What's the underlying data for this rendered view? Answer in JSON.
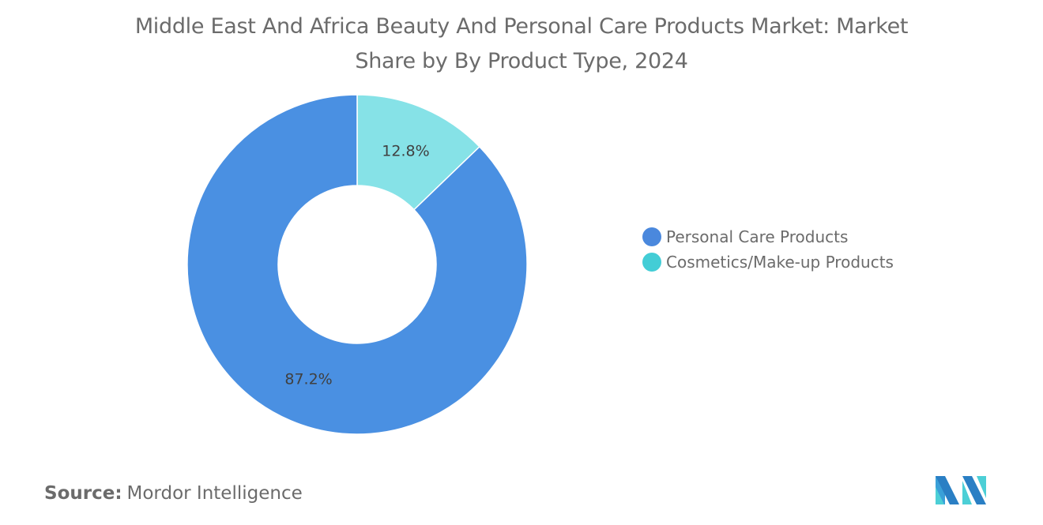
{
  "title": "Middle East And Africa Beauty And Personal Care Products Market: Market Share by By Product Type, 2024",
  "chart_data": {
    "type": "pie",
    "variant": "donut",
    "title": "Middle East And Africa Beauty And Personal Care Products Market: Market Share by By Product Type, 2024",
    "slices": [
      {
        "name": "Cosmetics/Make-up Products",
        "value": 12.8,
        "label": "12.8%",
        "color": "#86e2e7",
        "legend_color": "#43cdd6"
      },
      {
        "name": "Personal Care Products",
        "value": 87.2,
        "label": "87.2%",
        "color": "#4a90e2",
        "legend_color": "#4a88dd"
      }
    ],
    "legend": {
      "placement": "right",
      "items": [
        "Personal Care Products",
        "Cosmetics/Make-up Products"
      ]
    }
  },
  "source": {
    "label": "Source:",
    "value": "Mordor Intelligence"
  },
  "logo": "Mordor Intelligence logo"
}
